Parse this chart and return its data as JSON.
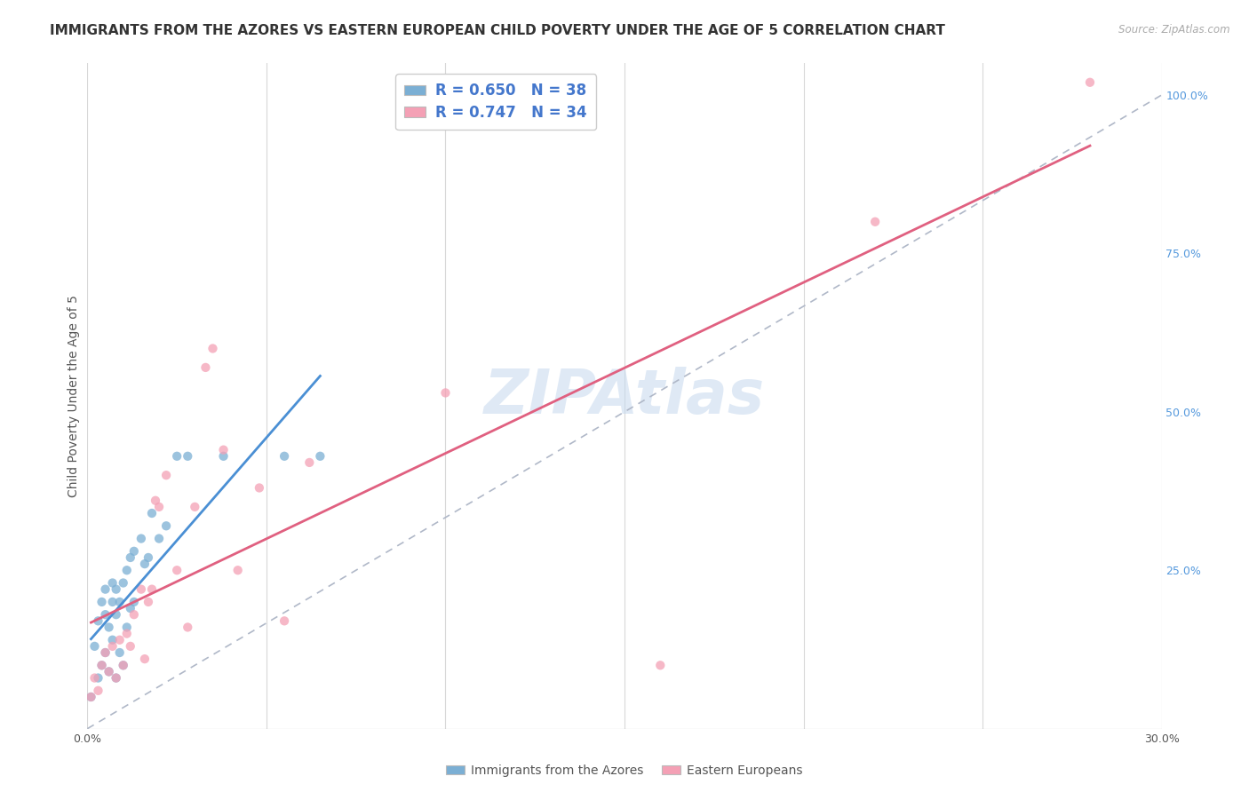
{
  "title": "IMMIGRANTS FROM THE AZORES VS EASTERN EUROPEAN CHILD POVERTY UNDER THE AGE OF 5 CORRELATION CHART",
  "source": "Source: ZipAtlas.com",
  "ylabel": "Child Poverty Under the Age of 5",
  "xlim": [
    0.0,
    0.3
  ],
  "ylim": [
    0.0,
    1.05
  ],
  "xtick_positions": [
    0.0,
    0.05,
    0.1,
    0.15,
    0.2,
    0.25,
    0.3
  ],
  "xticklabels": [
    "0.0%",
    "",
    "",
    "",
    "",
    "",
    "30.0%"
  ],
  "ytick_positions": [
    0.0,
    0.25,
    0.5,
    0.75,
    1.0
  ],
  "yticklabels_right": [
    "",
    "25.0%",
    "50.0%",
    "75.0%",
    "100.0%"
  ],
  "background_color": "#ffffff",
  "grid_color": "#d8d8d8",
  "watermark": "ZIPAtlas",
  "series1_color": "#7bafd4",
  "series2_color": "#f4a0b5",
  "reg1_color": "#4a8fd4",
  "reg2_color": "#e06080",
  "dash_color": "#b0b8c8",
  "title_fontsize": 11,
  "axis_label_fontsize": 10,
  "tick_fontsize": 9,
  "blue_scatter_x": [
    0.001,
    0.002,
    0.003,
    0.003,
    0.004,
    0.004,
    0.005,
    0.005,
    0.005,
    0.006,
    0.006,
    0.007,
    0.007,
    0.007,
    0.008,
    0.008,
    0.008,
    0.009,
    0.009,
    0.01,
    0.01,
    0.011,
    0.011,
    0.012,
    0.012,
    0.013,
    0.013,
    0.015,
    0.016,
    0.017,
    0.018,
    0.02,
    0.022,
    0.025,
    0.028,
    0.038,
    0.055,
    0.065
  ],
  "blue_scatter_y": [
    0.05,
    0.13,
    0.08,
    0.17,
    0.1,
    0.2,
    0.12,
    0.18,
    0.22,
    0.09,
    0.16,
    0.14,
    0.2,
    0.23,
    0.08,
    0.18,
    0.22,
    0.12,
    0.2,
    0.1,
    0.23,
    0.16,
    0.25,
    0.19,
    0.27,
    0.2,
    0.28,
    0.3,
    0.26,
    0.27,
    0.34,
    0.3,
    0.32,
    0.43,
    0.43,
    0.43,
    0.43,
    0.43
  ],
  "pink_scatter_x": [
    0.001,
    0.002,
    0.003,
    0.004,
    0.005,
    0.006,
    0.007,
    0.008,
    0.009,
    0.01,
    0.011,
    0.012,
    0.013,
    0.015,
    0.016,
    0.017,
    0.018,
    0.019,
    0.02,
    0.022,
    0.025,
    0.028,
    0.03,
    0.033,
    0.035,
    0.038,
    0.042,
    0.048,
    0.055,
    0.062,
    0.1,
    0.16,
    0.22,
    0.28
  ],
  "pink_scatter_y": [
    0.05,
    0.08,
    0.06,
    0.1,
    0.12,
    0.09,
    0.13,
    0.08,
    0.14,
    0.1,
    0.15,
    0.13,
    0.18,
    0.22,
    0.11,
    0.2,
    0.22,
    0.36,
    0.35,
    0.4,
    0.25,
    0.16,
    0.35,
    0.57,
    0.6,
    0.44,
    0.25,
    0.38,
    0.17,
    0.42,
    0.53,
    0.1,
    0.8,
    1.02
  ]
}
